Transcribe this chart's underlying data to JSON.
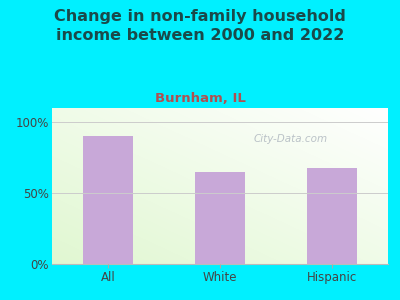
{
  "title": "Change in non-family household\nincome between 2000 and 2022",
  "subtitle": "Burnham, IL",
  "categories": [
    "All",
    "White",
    "Hispanic"
  ],
  "values": [
    90,
    65,
    68
  ],
  "bar_color": "#c8a8d8",
  "title_color": "#1a4a4a",
  "subtitle_color": "#b05050",
  "background_outer": "#00f0ff",
  "yticks": [
    0,
    50,
    100
  ],
  "ytick_labels": [
    "0%",
    "50%",
    "100%"
  ],
  "ylim": [
    0,
    110
  ],
  "watermark": "City-Data.com",
  "tick_color": "#444444",
  "grid_color": "#cccccc",
  "title_fontsize": 11.5,
  "subtitle_fontsize": 9.5
}
